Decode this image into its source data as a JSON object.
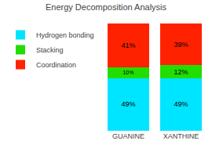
{
  "chart_data": {
    "type": "bar",
    "title": "Energy Decomposition Analysis",
    "categories": [
      "GUANINE",
      "XANTHINE"
    ],
    "series": [
      {
        "name": "Hydrogen bonding",
        "color": "#00E5FF",
        "values": [
          49,
          49
        ],
        "value_labels": [
          "49%",
          "49%"
        ]
      },
      {
        "name": "Stacking",
        "color": "#22DD00",
        "values": [
          10,
          12
        ],
        "value_labels": [
          "10%",
          "12%"
        ]
      },
      {
        "name": "Coordination",
        "color": "#FF2200",
        "values": [
          41,
          39
        ],
        "value_labels": [
          "41%",
          "39%"
        ]
      }
    ],
    "stacked": true,
    "data_labels": true,
    "ylim": [
      0,
      100
    ],
    "tick_labels": "x",
    "grid": false,
    "legend": "upper left"
  }
}
